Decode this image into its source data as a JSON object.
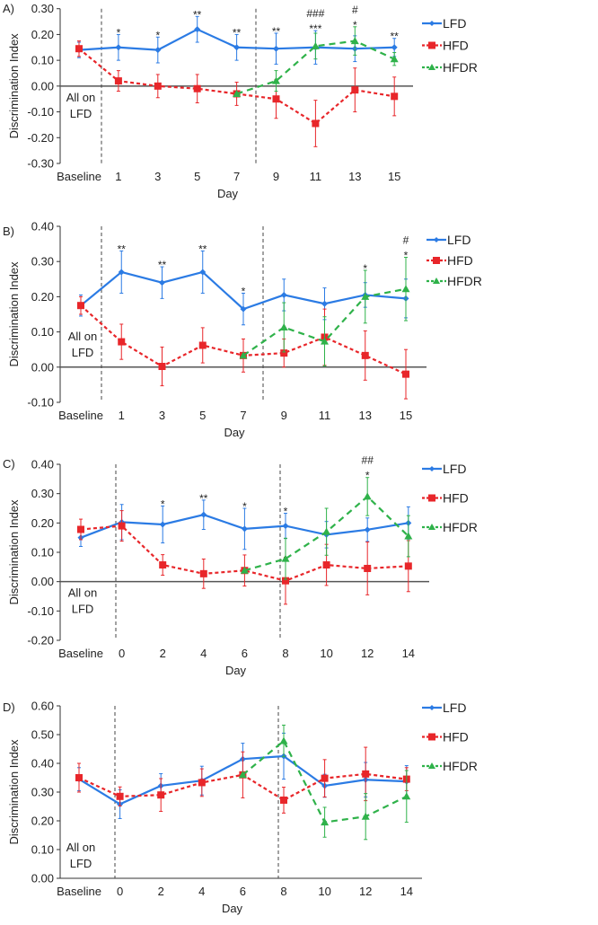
{
  "chart_data": [
    {
      "panel": "A)",
      "type": "line",
      "ylabel": "Discrimination Index",
      "xlabel": "Day",
      "ylim": [
        -0.3,
        0.3
      ],
      "yticks": [
        "0.30",
        "0.20",
        "0.10",
        "0.00",
        "-0.10",
        "-0.20",
        "-0.30"
      ],
      "categories": [
        "Baseline",
        "1",
        "3",
        "5",
        "7",
        "9",
        "11",
        "13",
        "15"
      ],
      "note": [
        "All on",
        "LFD"
      ],
      "series": [
        {
          "name": "LFD",
          "color": "#2b7be4",
          "values": [
            0.14,
            0.15,
            0.14,
            0.22,
            0.15,
            0.145,
            0.15,
            0.145,
            0.15
          ],
          "errors": [
            0.03,
            0.05,
            0.05,
            0.05,
            0.05,
            0.06,
            0.065,
            0.05,
            0.035
          ]
        },
        {
          "name": "HFD",
          "color": "#e8262a",
          "values": [
            0.145,
            0.02,
            0.0,
            -0.01,
            -0.03,
            -0.05,
            -0.145,
            -0.015,
            -0.04
          ],
          "errors": [
            0.03,
            0.04,
            0.045,
            0.055,
            0.045,
            0.075,
            0.09,
            0.085,
            0.075
          ]
        },
        {
          "name": "HFDR",
          "color": "#2fb24a",
          "values": [
            null,
            null,
            null,
            null,
            -0.03,
            0.02,
            0.155,
            0.175,
            0.105
          ],
          "errors": [
            null,
            null,
            null,
            null,
            0,
            0.04,
            0.05,
            0.055,
            0.025
          ]
        }
      ],
      "annotations": [
        {
          "index": 1,
          "lines": [
            "*"
          ]
        },
        {
          "index": 2,
          "lines": [
            "*"
          ]
        },
        {
          "index": 3,
          "lines": [
            "**"
          ]
        },
        {
          "index": 4,
          "lines": [
            "**"
          ]
        },
        {
          "index": 5,
          "lines": [
            "**"
          ]
        },
        {
          "index": 6,
          "lines": [
            "###",
            "***"
          ]
        },
        {
          "index": 7,
          "lines": [
            "#",
            "*"
          ]
        },
        {
          "index": 8,
          "lines": [
            "**"
          ]
        }
      ]
    },
    {
      "panel": "B)",
      "type": "line",
      "ylabel": "Discrimination Index",
      "xlabel": "Day",
      "ylim": [
        -0.1,
        0.4
      ],
      "yticks": [
        "0.40",
        "0.30",
        "0.20",
        "0.10",
        "0.00",
        "-0.10"
      ],
      "categories": [
        "Baseline",
        "1",
        "3",
        "5",
        "7",
        "9",
        "11",
        "13",
        "15"
      ],
      "note": [
        "All on",
        "LFD"
      ],
      "series": [
        {
          "name": "LFD",
          "color": "#2b7be4",
          "values": [
            0.175,
            0.27,
            0.24,
            0.27,
            0.165,
            0.205,
            0.18,
            0.205,
            0.195
          ],
          "errors": [
            0.03,
            0.06,
            0.045,
            0.06,
            0.045,
            0.045,
            0.045,
            0.035,
            0.055
          ]
        },
        {
          "name": "HFD",
          "color": "#e8262a",
          "values": [
            0.175,
            0.072,
            0.002,
            0.062,
            0.033,
            0.04,
            0.085,
            0.033,
            -0.02
          ],
          "errors": [
            0.025,
            0.05,
            0.055,
            0.05,
            0.047,
            0.04,
            0.08,
            0.07,
            0.07
          ]
        },
        {
          "name": "HFDR",
          "color": "#2fb24a",
          "values": [
            null,
            null,
            null,
            null,
            0.033,
            0.113,
            0.073,
            0.2,
            0.222
          ],
          "errors": [
            null,
            null,
            null,
            null,
            0,
            0.07,
            0.07,
            0.075,
            0.09
          ]
        }
      ],
      "annotations": [
        {
          "index": 1,
          "lines": [
            "**"
          ]
        },
        {
          "index": 2,
          "lines": [
            "**"
          ]
        },
        {
          "index": 3,
          "lines": [
            "**"
          ]
        },
        {
          "index": 4,
          "lines": [
            "*"
          ]
        },
        {
          "index": 7,
          "lines": [
            "*"
          ]
        },
        {
          "index": 8,
          "lines": [
            "#",
            "*"
          ]
        }
      ]
    },
    {
      "panel": "C)",
      "type": "line",
      "ylabel": "Discrimination Index",
      "xlabel": "Day",
      "ylim": [
        -0.2,
        0.4
      ],
      "yticks": [
        "0.40",
        "0.30",
        "0.20",
        "0.10",
        "0.00",
        "-0.10",
        "-0.20"
      ],
      "categories": [
        "Baseline",
        "0",
        "2",
        "4",
        "6",
        "8",
        "10",
        "12",
        "14"
      ],
      "note": [
        "All on",
        "LFD"
      ],
      "series": [
        {
          "name": "LFD",
          "color": "#2b7be4",
          "values": [
            0.15,
            0.203,
            0.195,
            0.228,
            0.18,
            0.19,
            0.16,
            0.177,
            0.2
          ],
          "errors": [
            0.03,
            0.06,
            0.063,
            0.05,
            0.07,
            0.043,
            0.045,
            0.04,
            0.055
          ]
        },
        {
          "name": "HFD",
          "color": "#e8262a",
          "values": [
            0.178,
            0.19,
            0.057,
            0.027,
            0.038,
            0.003,
            0.057,
            0.045,
            0.053
          ],
          "errors": [
            0.035,
            0.052,
            0.035,
            0.05,
            0.053,
            0.08,
            0.07,
            0.09,
            0.087
          ]
        },
        {
          "name": "HFDR",
          "color": "#2fb24a",
          "values": [
            null,
            null,
            null,
            null,
            0.038,
            0.078,
            0.17,
            0.29,
            0.155
          ],
          "errors": [
            null,
            null,
            null,
            null,
            0,
            0.07,
            0.08,
            0.065,
            0.07
          ]
        }
      ],
      "annotations": [
        {
          "index": 2,
          "lines": [
            "*"
          ]
        },
        {
          "index": 3,
          "lines": [
            "**"
          ]
        },
        {
          "index": 4,
          "lines": [
            "*"
          ]
        },
        {
          "index": 5,
          "lines": [
            "*"
          ]
        },
        {
          "index": 7,
          "lines": [
            "##",
            "*"
          ]
        }
      ]
    },
    {
      "panel": "D)",
      "type": "line",
      "ylabel": "Discrimination Index",
      "xlabel": "Day",
      "ylim": [
        0.0,
        0.6
      ],
      "yticks": [
        "0.60",
        "0.50",
        "0.40",
        "0.30",
        "0.20",
        "0.10",
        "0.00"
      ],
      "categories": [
        "Baseline",
        "0",
        "2",
        "4",
        "6",
        "8",
        "10",
        "12",
        "14"
      ],
      "note": [
        "All on",
        "LFD"
      ],
      "series": [
        {
          "name": "LFD",
          "color": "#2b7be4",
          "values": [
            0.345,
            0.258,
            0.322,
            0.34,
            0.415,
            0.425,
            0.322,
            0.343,
            0.337
          ],
          "errors": [
            0.04,
            0.05,
            0.042,
            0.05,
            0.055,
            0.08,
            0.04,
            0.06,
            0.055
          ]
        },
        {
          "name": "HFD",
          "color": "#e8262a",
          "values": [
            0.35,
            0.285,
            0.29,
            0.333,
            0.36,
            0.272,
            0.348,
            0.363,
            0.345
          ],
          "errors": [
            0.05,
            0.033,
            0.057,
            0.048,
            0.08,
            0.045,
            0.065,
            0.093,
            0.04
          ]
        },
        {
          "name": "HFDR",
          "color": "#2fb24a",
          "values": [
            null,
            null,
            null,
            null,
            0.36,
            0.478,
            0.195,
            0.215,
            0.285
          ],
          "errors": [
            null,
            null,
            null,
            null,
            0,
            0.055,
            0.052,
            0.08,
            0.09
          ]
        }
      ],
      "annotations": []
    }
  ]
}
